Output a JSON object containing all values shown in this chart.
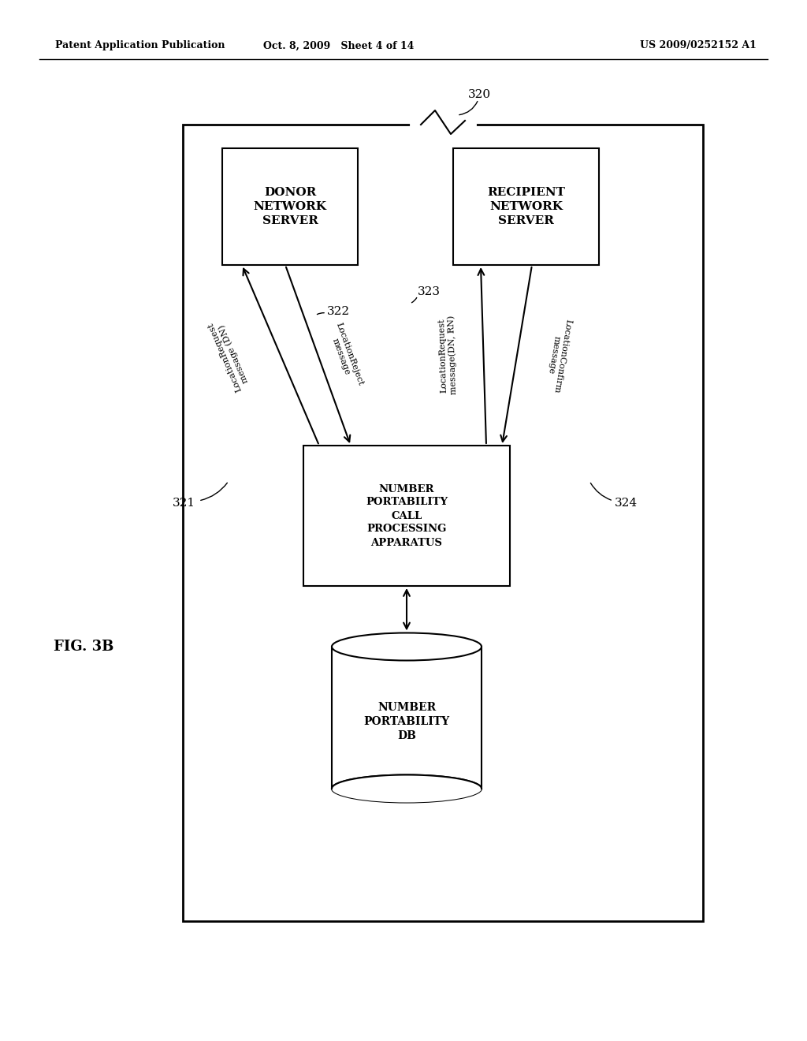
{
  "bg_color": "#ffffff",
  "header_left": "Patent Application Publication",
  "header_center": "Oct. 8, 2009   Sheet 4 of 14",
  "header_right": "US 2009/0252152 A1",
  "fig_label": "FIG. 3B",
  "label_320": "320",
  "label_321": "321",
  "label_322": "322",
  "label_323": "323",
  "label_324": "324",
  "donor_box_text": "DONOR\nNETWORK\nSERVER",
  "recipient_box_text": "RECIPIENT\nNETWORK\nSERVER",
  "npcp_box_text": "NUMBER\nPORTABILITY\nCALL\nPROCESSING\nAPPARATUS",
  "db_text": "NUMBER\nPORTABILITY\nDB",
  "arrow_label_1": "LocationRequest\nmessage (DN)",
  "arrow_label_2": "LocationReject\nmessage",
  "arrow_label_3": "LocationRequest\nmessage(DN, RN)",
  "arrow_label_4": "LocationConfirm\nmessage"
}
